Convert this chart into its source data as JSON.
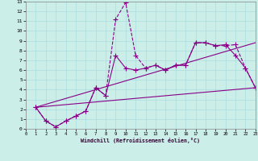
{
  "xlabel": "Windchill (Refroidissement éolien,°C)",
  "background_color": "#cceee8",
  "grid_color": "#aadddd",
  "line_color": "#880088",
  "xlim": [
    0,
    23
  ],
  "ylim": [
    0,
    13
  ],
  "xticks": [
    0,
    1,
    2,
    3,
    4,
    5,
    6,
    7,
    8,
    9,
    10,
    11,
    12,
    13,
    14,
    15,
    16,
    17,
    18,
    19,
    20,
    21,
    22,
    23
  ],
  "yticks": [
    0,
    1,
    2,
    3,
    4,
    5,
    6,
    7,
    8,
    9,
    10,
    11,
    12,
    13
  ],
  "series": [
    {
      "x": [
        1,
        2,
        3,
        4,
        5,
        6,
        7,
        8,
        9,
        10,
        11,
        12,
        13,
        14,
        15,
        16,
        17,
        18,
        19,
        20,
        21,
        22,
        23
      ],
      "y": [
        2.2,
        0.8,
        0.2,
        0.8,
        1.3,
        1.8,
        4.2,
        3.4,
        11.2,
        12.9,
        7.5,
        6.2,
        6.5,
        6.0,
        6.5,
        6.5,
        8.8,
        8.8,
        8.5,
        8.5,
        8.6,
        6.2,
        4.2
      ],
      "marker": "+",
      "markersize": 4,
      "linestyle": "--",
      "linewidth": 0.8
    },
    {
      "x": [
        1,
        2,
        3,
        4,
        5,
        6,
        7,
        8,
        9,
        10,
        11,
        12,
        13,
        14,
        15,
        16,
        17,
        18,
        19,
        20,
        21,
        22,
        23
      ],
      "y": [
        2.2,
        0.8,
        0.2,
        0.8,
        1.3,
        1.8,
        4.2,
        3.4,
        7.5,
        6.2,
        6.0,
        6.2,
        6.5,
        6.0,
        6.5,
        6.5,
        8.8,
        8.8,
        8.5,
        8.6,
        7.5,
        6.2,
        4.2
      ],
      "marker": "+",
      "markersize": 4,
      "linestyle": "-",
      "linewidth": 0.8
    },
    {
      "x": [
        1,
        23
      ],
      "y": [
        2.2,
        8.8
      ],
      "marker": null,
      "markersize": 0,
      "linestyle": "-",
      "linewidth": 0.8
    },
    {
      "x": [
        1,
        23
      ],
      "y": [
        2.2,
        4.2
      ],
      "marker": null,
      "markersize": 0,
      "linestyle": "-",
      "linewidth": 0.8
    }
  ]
}
